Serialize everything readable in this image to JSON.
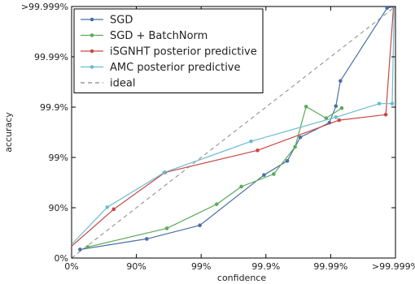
{
  "chart_data": {
    "type": "line",
    "xlabel": "confidence",
    "ylabel": "accuracy",
    "x_ticks": [
      "0%",
      "90%",
      "99%",
      "99.9%",
      "99.99%",
      ">99.999%"
    ],
    "y_ticks": [
      "0%",
      "90%",
      "99%",
      "99.9%",
      "99.99%",
      ">99.999%"
    ],
    "xlim": [
      0,
      5
    ],
    "ylim": [
      0,
      5
    ],
    "legend_position": "top-left",
    "grid": false,
    "series": [
      {
        "name": "SGD",
        "color": "#4a6fa5",
        "points": [
          [
            0.13,
            0.17
          ],
          [
            1.16,
            0.38
          ],
          [
            1.98,
            0.65
          ],
          [
            2.97,
            1.65
          ],
          [
            3.33,
            1.93
          ],
          [
            3.53,
            2.4
          ],
          [
            3.98,
            2.69
          ],
          [
            4.08,
            3.02
          ],
          [
            4.15,
            3.52
          ],
          [
            4.87,
            4.97
          ],
          [
            4.98,
            5.0
          ]
        ]
      },
      {
        "name": "SGD + BatchNorm",
        "color": "#5aaa5a",
        "points": [
          [
            0.25,
            0.22
          ],
          [
            1.47,
            0.59
          ],
          [
            2.24,
            1.07
          ],
          [
            2.62,
            1.42
          ],
          [
            3.12,
            1.67
          ],
          [
            3.45,
            2.21
          ],
          [
            3.62,
            3.01
          ],
          [
            3.93,
            2.78
          ],
          [
            4.17,
            2.98
          ]
        ]
      },
      {
        "name": "iSGNHT posterior predictive",
        "color": "#c84848",
        "points": [
          [
            -0.03,
            0.2
          ],
          [
            0.65,
            0.97
          ],
          [
            1.44,
            1.7
          ],
          [
            2.87,
            2.14
          ],
          [
            4.13,
            2.74
          ],
          [
            4.85,
            2.85
          ],
          [
            4.97,
            5.0
          ]
        ]
      },
      {
        "name": "AMC posterior predictive",
        "color": "#6abcd0",
        "points": [
          [
            -0.06,
            0.19
          ],
          [
            0.55,
            1.01
          ],
          [
            1.43,
            1.7
          ],
          [
            2.77,
            2.32
          ],
          [
            4.08,
            2.8
          ],
          [
            4.75,
            3.07
          ],
          [
            4.95,
            3.07
          ],
          [
            4.98,
            5.0
          ]
        ]
      }
    ],
    "ideal": {
      "name": "ideal",
      "color": "#888888",
      "points": [
        [
          0,
          0
        ],
        [
          5,
          5
        ]
      ]
    }
  }
}
